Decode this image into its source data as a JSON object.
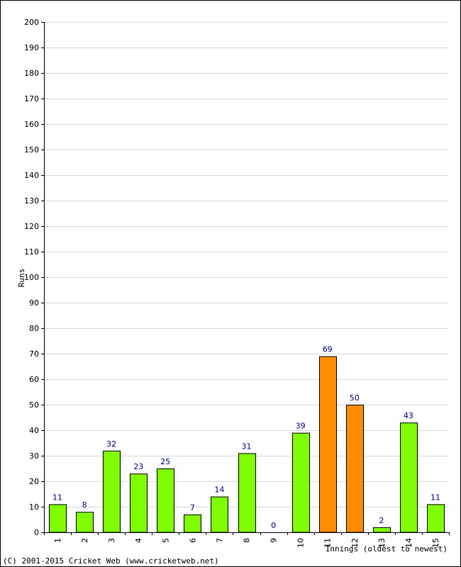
{
  "chart_data": {
    "type": "bar",
    "title": "",
    "xlabel": "Innings (oldest to newest)",
    "ylabel": "Runs",
    "ylim": [
      0,
      200
    ],
    "ytick_step": 10,
    "grid": true,
    "categories": [
      "1",
      "2",
      "3",
      "4",
      "5",
      "6",
      "7",
      "8",
      "9",
      "10",
      "11",
      "12",
      "13",
      "14",
      "15"
    ],
    "values": [
      11,
      8,
      32,
      23,
      25,
      7,
      14,
      31,
      0,
      39,
      69,
      50,
      2,
      43,
      11
    ],
    "bar_colors": [
      "#80ff00",
      "#80ff00",
      "#80ff00",
      "#80ff00",
      "#80ff00",
      "#80ff00",
      "#80ff00",
      "#80ff00",
      "#80ff00",
      "#80ff00",
      "#ff8c00",
      "#ff8c00",
      "#80ff00",
      "#80ff00",
      "#80ff00"
    ],
    "colors": {
      "normal": "#80ff00",
      "highlight": "#ff8c00",
      "label": "#000080",
      "grid": "#d8d8d8"
    }
  },
  "footer": {
    "copyright": "(C) 2001-2015 Cricket Web (www.cricketweb.net)"
  }
}
